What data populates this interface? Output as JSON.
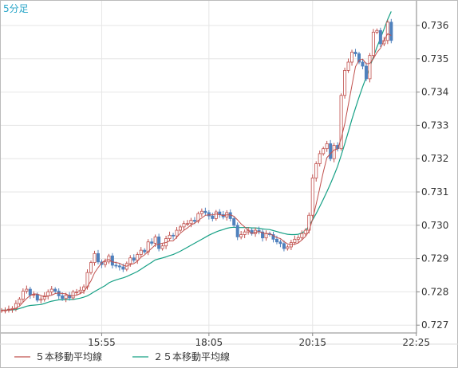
{
  "chart_data": {
    "type": "candlestick",
    "period_label": "5分足",
    "x_tick_labels": [
      "15:55",
      "18:05",
      "20:15",
      "22:25"
    ],
    "y_tick_labels": [
      "0.736",
      "0.735",
      "0.734",
      "0.733",
      "0.732",
      "0.731",
      "0.730",
      "0.729",
      "0.728",
      "0.727"
    ],
    "ylim": [
      0.727,
      0.7363
    ],
    "grid": true,
    "colors": {
      "up": "#c0504d",
      "down": "#4f81bd",
      "ma5": "#c0504d",
      "ma25": "#16a085",
      "grid": "#e6e6e6",
      "axis": "#888888",
      "period": "#2aa6c8"
    },
    "legend": [
      {
        "label": "５本移動平均線",
        "color": "#c0504d"
      },
      {
        "label": "２５本移動平均線",
        "color": "#16a085"
      }
    ],
    "closes": [
      0.72745,
      0.72745,
      0.72748,
      0.7275,
      0.72765,
      0.72778,
      0.72802,
      0.72808,
      0.7279,
      0.72792,
      0.72775,
      0.72778,
      0.72788,
      0.728,
      0.72808,
      0.72802,
      0.72788,
      0.7278,
      0.7279,
      0.72782,
      0.728,
      0.728,
      0.72805,
      0.72815,
      0.72858,
      0.72888,
      0.72915,
      0.7289,
      0.72882,
      0.7289,
      0.72908,
      0.7288,
      0.72878,
      0.72875,
      0.72868,
      0.72885,
      0.72902,
      0.72895,
      0.72912,
      0.72925,
      0.7292,
      0.7295,
      0.72946,
      0.72965,
      0.7293,
      0.72938,
      0.7296,
      0.7297,
      0.72968,
      0.72985,
      0.72995,
      0.73005,
      0.73005,
      0.73015,
      0.73012,
      0.73035,
      0.73042,
      0.73038,
      0.73028,
      0.7302,
      0.7304,
      0.73032,
      0.73025,
      0.73038,
      0.7302,
      0.73,
      0.72965,
      0.72972,
      0.7298,
      0.72985,
      0.72975,
      0.72985,
      0.7298,
      0.72962,
      0.72975,
      0.72972,
      0.72958,
      0.7295,
      0.72945,
      0.7293,
      0.72935,
      0.72948,
      0.72958,
      0.72963,
      0.72975,
      0.72985,
      0.7303,
      0.73142,
      0.73185,
      0.73215,
      0.7323,
      0.73245,
      0.732,
      0.7324,
      0.7323,
      0.7339,
      0.73465,
      0.7349,
      0.7352,
      0.73515,
      0.7349,
      0.73478,
      0.7344,
      0.7351,
      0.7358,
      0.73585,
      0.73545,
      0.73555,
      0.7361,
      0.73555
    ],
    "ma5": [
      0.72745,
      0.72745,
      0.72746,
      0.72747,
      0.72751,
      0.72757,
      0.72769,
      0.7278,
      0.72789,
      0.72794,
      0.72793,
      0.72789,
      0.72785,
      0.72787,
      0.7279,
      0.72795,
      0.72797,
      0.72795,
      0.72794,
      0.72788,
      0.72788,
      0.7279,
      0.72795,
      0.728,
      0.72816,
      0.72833,
      0.72857,
      0.72873,
      0.72887,
      0.72895,
      0.72897,
      0.7289,
      0.72888,
      0.72886,
      0.7288,
      0.72877,
      0.72882,
      0.72885,
      0.72892,
      0.72904,
      0.72911,
      0.72921,
      0.72931,
      0.72941,
      0.72943,
      0.72946,
      0.72948,
      0.72953,
      0.72953,
      0.72964,
      0.72976,
      0.72985,
      0.72992,
      0.73001,
      0.73006,
      0.73014,
      0.73022,
      0.7303,
      0.73031,
      0.73031,
      0.73034,
      0.73032,
      0.73029,
      0.73031,
      0.73031,
      0.73027,
      0.73016,
      0.73004,
      0.72995,
      0.72984,
      0.72975,
      0.72979,
      0.72981,
      0.72977,
      0.72975,
      0.72975,
      0.72969,
      0.72963,
      0.7296,
      0.72951,
      0.72944,
      0.72942,
      0.72943,
      0.72947,
      0.72956,
      0.72966,
      0.72982,
      0.73019,
      0.73063,
      0.73111,
      0.7316,
      0.73203,
      0.73215,
      0.73226,
      0.73229,
      0.73261,
      0.73305,
      0.73363,
      0.73419,
      0.73476,
      0.73496,
      0.73499,
      0.73485,
      0.73486,
      0.735,
      0.73519,
      0.73532,
      0.73555,
      0.73575,
      0.7357
    ],
    "ma25": [
      0.72745,
      0.72745,
      0.72745,
      0.72746,
      0.72747,
      0.7275,
      0.72753,
      0.72757,
      0.72759,
      0.7276,
      0.72761,
      0.72762,
      0.72765,
      0.72769,
      0.72772,
      0.72774,
      0.72776,
      0.72776,
      0.72777,
      0.72777,
      0.72777,
      0.72779,
      0.72781,
      0.72784,
      0.72788,
      0.72794,
      0.72801,
      0.72807,
      0.72813,
      0.72819,
      0.72827,
      0.72832,
      0.72836,
      0.72839,
      0.72842,
      0.72846,
      0.72851,
      0.72856,
      0.72861,
      0.72868,
      0.72875,
      0.72882,
      0.72889,
      0.72896,
      0.72899,
      0.72902,
      0.72905,
      0.72909,
      0.72912,
      0.72917,
      0.72922,
      0.72928,
      0.72934,
      0.7294,
      0.72946,
      0.72952,
      0.72958,
      0.72964,
      0.7297,
      0.72975,
      0.7298,
      0.72984,
      0.72987,
      0.72991,
      0.72993,
      0.72994,
      0.72993,
      0.72993,
      0.72993,
      0.72993,
      0.72992,
      0.72992,
      0.72991,
      0.72989,
      0.72988,
      0.72987,
      0.72984,
      0.72981,
      0.72978,
      0.72975,
      0.72973,
      0.72972,
      0.72972,
      0.72973,
      0.72977,
      0.72983,
      0.72998,
      0.73016,
      0.73035,
      0.73056,
      0.73078,
      0.73101,
      0.73125,
      0.7315,
      0.73177,
      0.7321,
      0.73245,
      0.73281,
      0.73318,
      0.73352,
      0.73385,
      0.73416,
      0.73445,
      0.73475,
      0.73505,
      0.73535,
      0.73562,
      0.7359,
      0.73618,
      0.73642
    ]
  }
}
